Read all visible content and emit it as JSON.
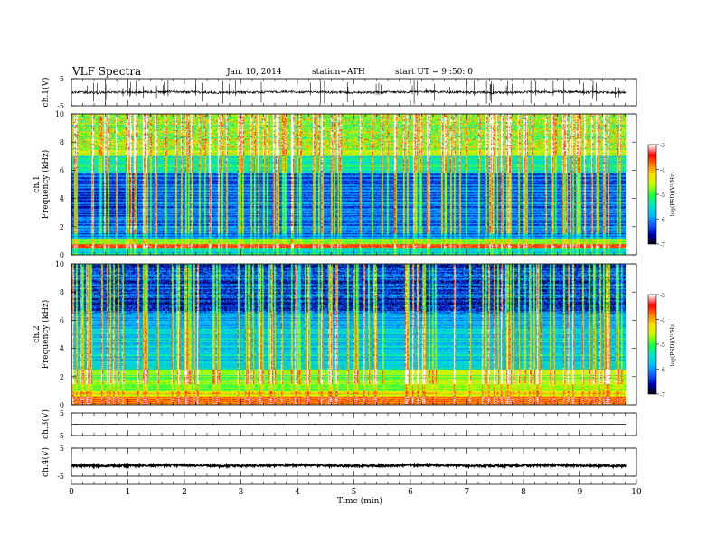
{
  "header": {
    "title": "VLF  Spectra",
    "date": "Jan. 10, 2014",
    "station": "station=ATH",
    "start": "start  UT  =   9  :50: 0"
  },
  "chart_data": {
    "type": "heatmap",
    "x": {
      "label": "Time  (min)",
      "range": [
        0,
        10
      ],
      "ticks": [
        "0",
        "1",
        "2",
        "3",
        "4",
        "5",
        "6",
        "7",
        "8",
        "9",
        "10"
      ]
    },
    "colorbar": {
      "label": "log(PSD)(V²/Hz)",
      "range": [
        -7,
        -3
      ],
      "ticks": [
        "-3",
        "-4",
        "-5",
        "-6",
        "-7"
      ],
      "stops": [
        "#000000",
        "#0000b0",
        "#1060ff",
        "#00c0ff",
        "#00e8c0",
        "#20ff40",
        "#c0ff00",
        "#ffe000",
        "#ff8000",
        "#ff0000",
        "#ffffff"
      ]
    },
    "panels": [
      {
        "id": "ch1_v",
        "kind": "waveform",
        "ylabel": "ch.1(V)",
        "ylim": [
          -5,
          5
        ],
        "yticks": [
          "5",
          "-5"
        ],
        "level": 0.0,
        "noise": 0.45,
        "spike_amp": 4.5
      },
      {
        "id": "ch1_spec",
        "kind": "spectrogram",
        "ylabel_top": "ch.1",
        "ylabel": "Frequency  (kHz)",
        "ylim": [
          0,
          10
        ],
        "yticks": [
          "0",
          "2",
          "4",
          "6",
          "8",
          "10"
        ]
      },
      {
        "id": "ch2_spec",
        "kind": "spectrogram",
        "ylabel_top": "ch.2",
        "ylabel": "Frequency  (kHz)",
        "ylim": [
          0,
          10
        ],
        "yticks": [
          "0",
          "2",
          "4",
          "6",
          "8",
          "10"
        ]
      },
      {
        "id": "ch3_v",
        "kind": "waveform",
        "ylabel": "ch.3(V)",
        "ylim": [
          -5,
          5
        ],
        "yticks": [
          "5",
          "-5"
        ],
        "level": 0.0,
        "noise": 0.05,
        "spike_amp": 0.3
      },
      {
        "id": "ch4_v",
        "kind": "waveform",
        "ylabel": "ch.4(V)",
        "ylim": [
          -5,
          5
        ],
        "yticks": [
          "5",
          "-5"
        ],
        "level": -1.2,
        "noise": 0.35,
        "spike_amp": 0.3
      }
    ]
  }
}
